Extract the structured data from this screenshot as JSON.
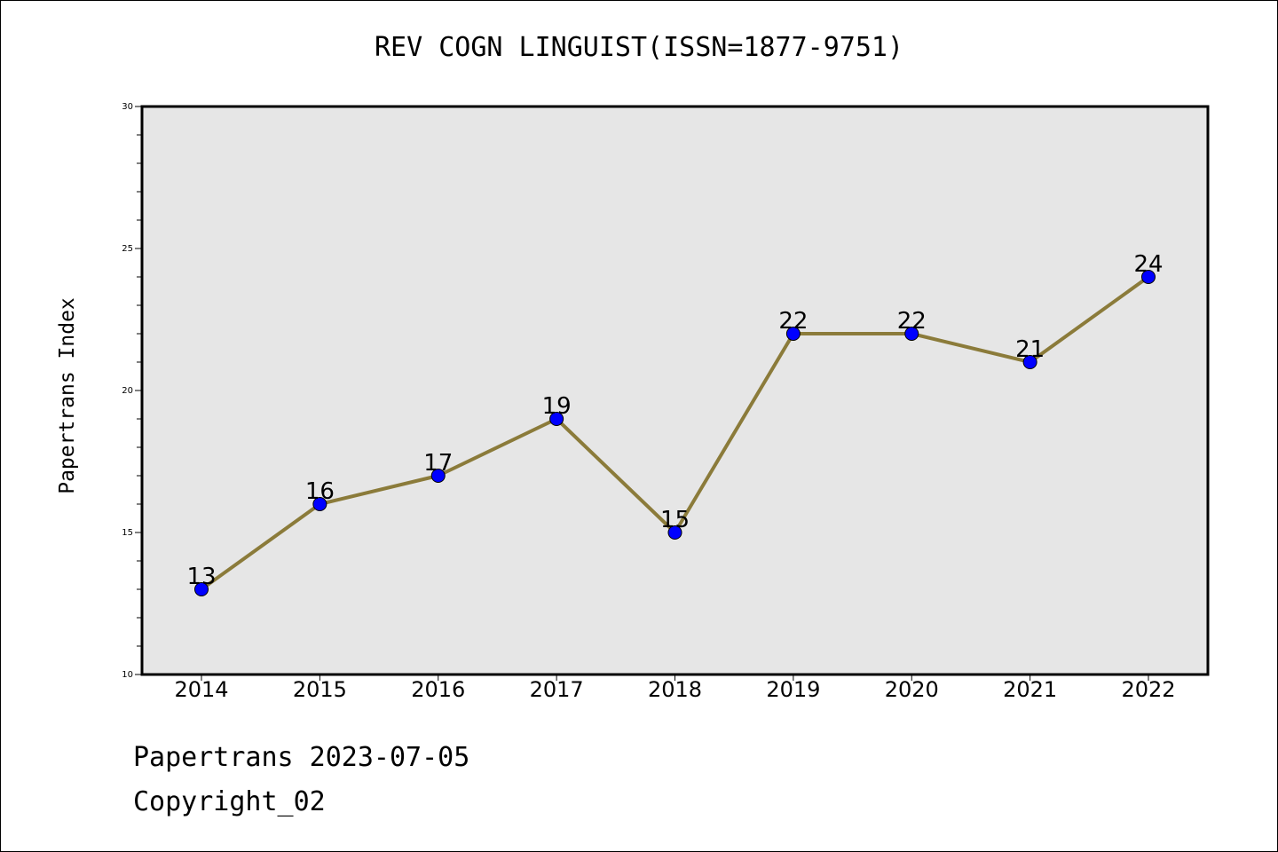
{
  "chart_data": {
    "type": "line",
    "title": "REV COGN LINGUIST(ISSN=1877-9751)",
    "xlabel": "",
    "ylabel": "Papertrans Index",
    "categories": [
      "2014",
      "2015",
      "2016",
      "2017",
      "2018",
      "2019",
      "2020",
      "2021",
      "2022"
    ],
    "series": [
      {
        "values": [
          13,
          16,
          17,
          19,
          15,
          22,
          22,
          21,
          24
        ],
        "line_color": "#8B7B3A",
        "marker_color": "#0000FF"
      }
    ],
    "data_labels": [
      "13",
      "16",
      "17",
      "19",
      "15",
      "22",
      "22",
      "21",
      "24"
    ],
    "ylim": [
      10,
      30
    ],
    "y_major_ticks": [
      "10",
      "15",
      "20",
      "25",
      "30"
    ],
    "y_minor_step": 1,
    "grid": false,
    "legend": "none",
    "plot_background": "#E6E6E6"
  },
  "footer": {
    "line1": "Papertrans 2023-07-05",
    "line2": "Copyright_02"
  }
}
